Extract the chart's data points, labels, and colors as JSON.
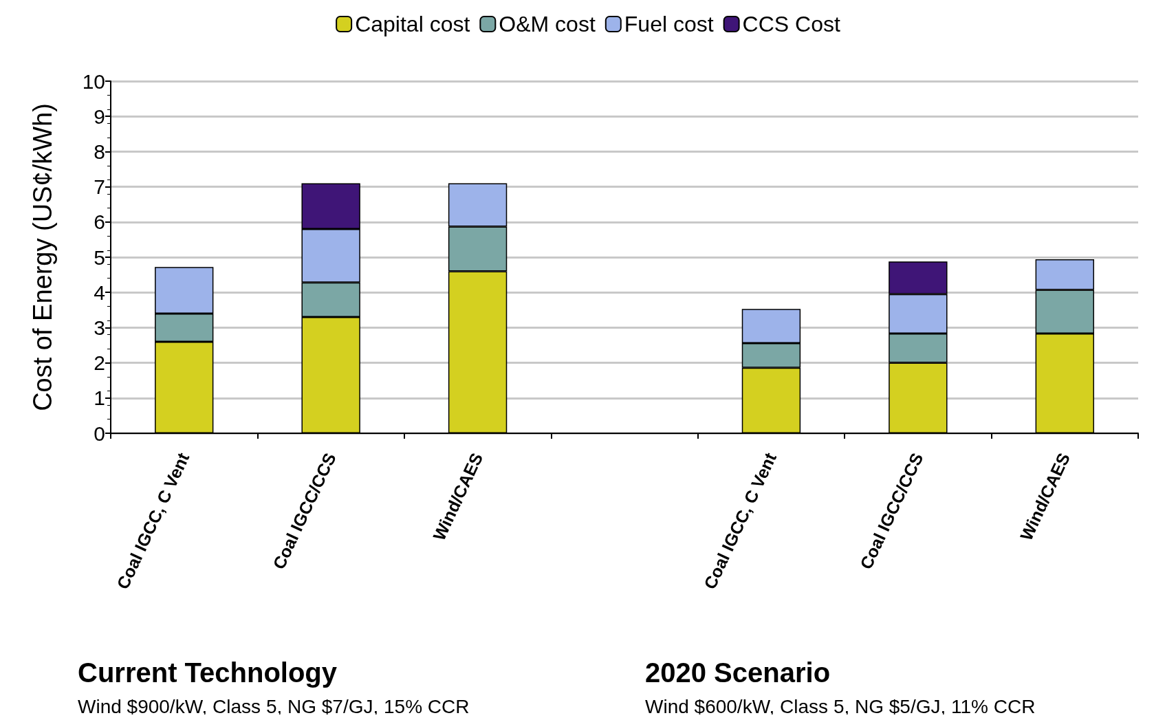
{
  "chart_data": {
    "type": "bar",
    "stacked": true,
    "ylabel": "Cost of Energy (US¢/kWh)",
    "categories": [
      "Coal IGCC, C Vent",
      "Coal IGCC/CCS",
      "Wind/CAES",
      null,
      "Coal IGCC, C Vent",
      "Coal IGCC/CCS",
      "Wind/CAES"
    ],
    "series": [
      {
        "name": "Capital cost",
        "color": "#d4d020",
        "values": [
          2.6,
          3.3,
          4.6,
          null,
          1.86,
          2.0,
          2.83
        ]
      },
      {
        "name": "O&M cost",
        "color": "#7ba7a5",
        "values": [
          0.8,
          0.98,
          1.27,
          null,
          0.7,
          0.83,
          1.24
        ]
      },
      {
        "name": "Fuel cost",
        "color": "#9db3ea",
        "values": [
          1.32,
          1.52,
          1.23,
          null,
          0.97,
          1.12,
          0.87
        ]
      },
      {
        "name": "CCS Cost",
        "color": "#3f1577",
        "values": [
          null,
          1.3,
          null,
          null,
          null,
          0.93,
          null
        ]
      }
    ],
    "ylim": [
      0,
      10
    ],
    "yticks": [
      0,
      1,
      2,
      3,
      4,
      5,
      6,
      7,
      8,
      9,
      10
    ],
    "grid": "y",
    "legend": "top",
    "annotations": [
      "Current Technology",
      "Wind $900/kW, Class 5, NG $7/GJ, 15% CCR",
      "2020 Scenario",
      "Wind $600/kW, Class 5, NG $5/GJ, 11% CCR"
    ]
  }
}
